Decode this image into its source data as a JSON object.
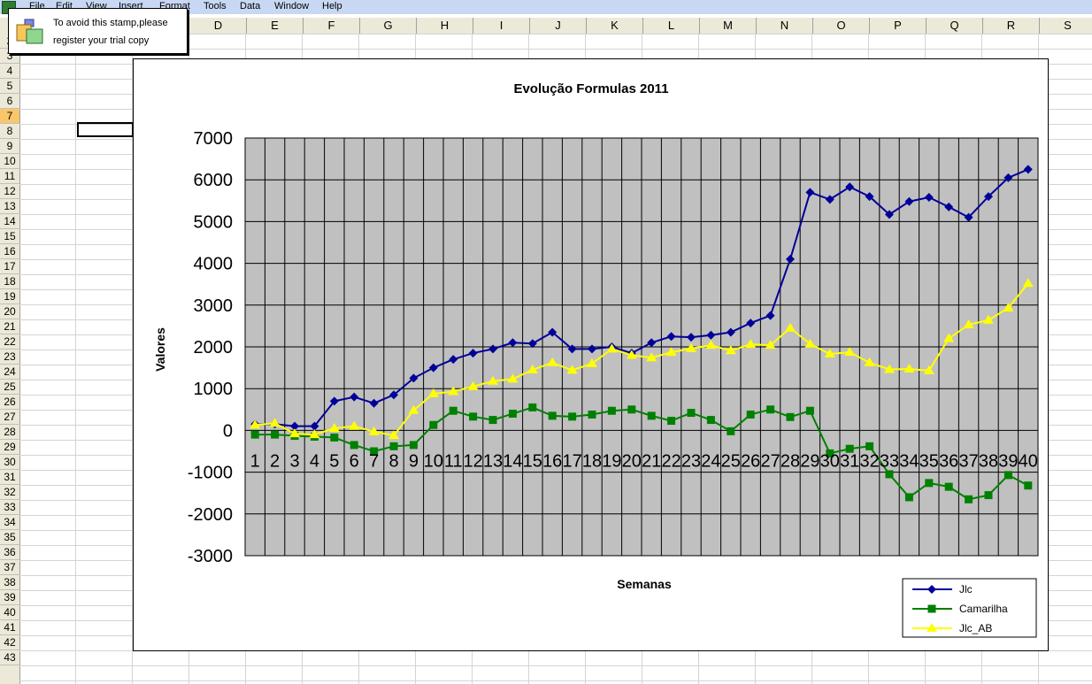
{
  "menu": {
    "items": [
      "File",
      "Edit",
      "View",
      "Insert",
      "Format",
      "Tools",
      "Data",
      "Window",
      "Help"
    ]
  },
  "stamp": {
    "line1": "To avoid this stamp,please",
    "line2": "register your trial copy"
  },
  "spreadsheet": {
    "columns": [
      "D",
      "E",
      "F",
      "G",
      "H",
      "I",
      "J",
      "K",
      "L",
      "M",
      "N",
      "O",
      "P",
      "Q",
      "R",
      "S"
    ],
    "rows": [
      "2",
      "3",
      "4",
      "5",
      "6",
      "7",
      "8",
      "9",
      "10",
      "11",
      "12",
      "13",
      "14",
      "15",
      "16",
      "17",
      "18",
      "19",
      "20",
      "21",
      "22",
      "23",
      "24",
      "25",
      "26",
      "27",
      "28",
      "29",
      "30",
      "31",
      "32",
      "33",
      "34",
      "35",
      "36",
      "37",
      "38",
      "39",
      "40",
      "41",
      "42",
      "43"
    ],
    "active_row": "7"
  },
  "chart_data": {
    "type": "line",
    "title": "Evolução Formulas 2011",
    "xlabel": "Semanas",
    "ylabel": "Valores",
    "ylim": [
      -3000,
      7000
    ],
    "y_ticks": [
      "7000",
      "6000",
      "5000",
      "4000",
      "3000",
      "2000",
      "1000",
      "0",
      "-1000",
      "-2000",
      "-3000"
    ],
    "categories": [
      "1",
      "2",
      "3",
      "4",
      "5",
      "6",
      "7",
      "8",
      "9",
      "10",
      "11",
      "12",
      "13",
      "14",
      "15",
      "16",
      "17",
      "18",
      "19",
      "20",
      "21",
      "22",
      "23",
      "24",
      "25",
      "26",
      "27",
      "28",
      "29",
      "30",
      "31",
      "32",
      "33",
      "34",
      "35",
      "36",
      "37",
      "38",
      "39",
      "40"
    ],
    "grid": true,
    "legend_position": "bottom-right",
    "plot_background": "#c0c0c0",
    "series": [
      {
        "name": "Jlc",
        "color": "#000099",
        "marker": "diamond",
        "values": [
          150,
          150,
          100,
          100,
          700,
          800,
          650,
          850,
          1250,
          1500,
          1700,
          1850,
          1950,
          2100,
          2080,
          2350,
          1950,
          1950,
          2000,
          1850,
          2100,
          2250,
          2230,
          2280,
          2350,
          2570,
          2750,
          4100,
          5700,
          5530,
          5830,
          5600,
          5170,
          5480,
          5580,
          5350,
          5100,
          5600,
          6050,
          6250
        ]
      },
      {
        "name": "Camarilha",
        "color": "#008000",
        "marker": "square",
        "values": [
          -100,
          -100,
          -130,
          -150,
          -170,
          -350,
          -500,
          -380,
          -350,
          130,
          470,
          330,
          250,
          400,
          550,
          350,
          330,
          380,
          470,
          500,
          350,
          230,
          420,
          250,
          -20,
          380,
          500,
          320,
          470,
          -550,
          -440,
          -380,
          -1050,
          -1600,
          -1260,
          -1350,
          -1650,
          -1550,
          -1070,
          -1320
        ]
      },
      {
        "name": "Jlc_AB",
        "color": "#ffff00",
        "marker": "triangle",
        "values": [
          130,
          170,
          -80,
          -100,
          50,
          100,
          -30,
          -120,
          480,
          880,
          930,
          1050,
          1180,
          1230,
          1450,
          1620,
          1440,
          1600,
          1950,
          1800,
          1740,
          1870,
          1960,
          2040,
          1910,
          2060,
          2040,
          2450,
          2070,
          1830,
          1870,
          1620,
          1460,
          1470,
          1430,
          2200,
          2530,
          2640,
          2930,
          3520
        ]
      }
    ]
  }
}
